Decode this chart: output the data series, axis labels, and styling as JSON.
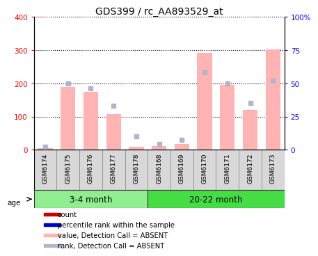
{
  "title": "GDS399 / rc_AA893529_at",
  "samples": [
    "GSM6174",
    "GSM6175",
    "GSM6176",
    "GSM6177",
    "GSM6178",
    "GSM6168",
    "GSM6169",
    "GSM6170",
    "GSM6171",
    "GSM6172",
    "GSM6173"
  ],
  "bar_values": [
    5,
    190,
    175,
    107,
    10,
    12,
    18,
    292,
    195,
    120,
    302
  ],
  "rank_values": [
    2.5,
    50,
    46,
    33,
    10,
    4.5,
    7.5,
    58,
    50,
    35,
    52
  ],
  "bar_color": "#ffb3b3",
  "rank_color": "#b3b3cc",
  "left_ylim": [
    0,
    400
  ],
  "right_ylim": [
    0,
    100
  ],
  "left_yticks": [
    0,
    100,
    200,
    300,
    400
  ],
  "right_yticks": [
    0,
    25,
    50,
    75,
    100
  ],
  "right_yticklabels": [
    "0",
    "25",
    "50",
    "75",
    "100%"
  ],
  "groups": [
    {
      "label": "3-4 month",
      "start": 0,
      "end": 5,
      "color": "#90ee90"
    },
    {
      "label": "20-22 month",
      "start": 5,
      "end": 11,
      "color": "#44dd44"
    }
  ],
  "age_label": "age",
  "legend_items": [
    {
      "label": "count",
      "color": "#cc0000"
    },
    {
      "label": "percentile rank within the sample",
      "color": "#0000cc"
    },
    {
      "label": "value, Detection Call = ABSENT",
      "color": "#ffb3b3"
    },
    {
      "label": "rank, Detection Call = ABSENT",
      "color": "#b3b3cc"
    }
  ]
}
